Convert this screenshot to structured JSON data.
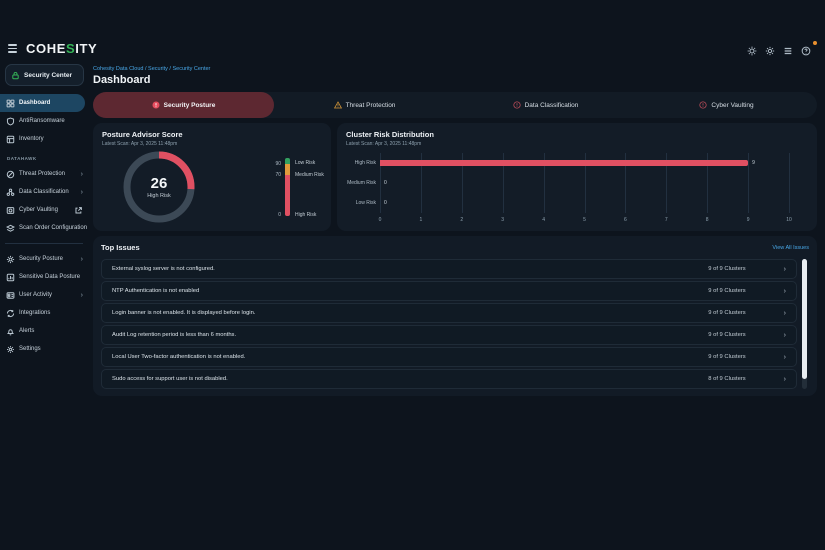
{
  "topbar": {
    "logo": {
      "pre": "COHE",
      "mid": "S",
      "post": "ITY"
    },
    "icons": [
      "brightness-icon",
      "gear-icon",
      "apps-grid-icon",
      "help-circle-icon"
    ],
    "notification_color": "#e8902f"
  },
  "sidebar": {
    "app_label": "Security Center",
    "main_items": [
      {
        "label": "Dashboard",
        "selected": true
      },
      {
        "label": "AntiRansomware",
        "selected": false
      },
      {
        "label": "Inventory",
        "selected": false
      }
    ],
    "section_label": "DATAHAWK",
    "datahawk_items": [
      {
        "label": "Threat Protection",
        "chevron": "›"
      },
      {
        "label": "Data Classification",
        "chevron": "›"
      },
      {
        "label": "Cyber Vaulting",
        "chevron": ""
      },
      {
        "label": "Scan Order Configuration",
        "chevron": ""
      }
    ],
    "bottom_items": [
      {
        "label": "Security Posture",
        "chevron": "›"
      },
      {
        "label": "Sensitive Data Posture",
        "chevron": ""
      },
      {
        "label": "User Activity",
        "chevron": "›"
      },
      {
        "label": "Integrations",
        "chevron": ""
      },
      {
        "label": "Alerts",
        "chevron": ""
      },
      {
        "label": "Settings",
        "chevron": ""
      }
    ]
  },
  "header": {
    "breadcrumb": "Cohesity Data Cloud / Security / Security Center",
    "title": "Dashboard"
  },
  "tabs": [
    {
      "label": "Security Posture",
      "selected": true,
      "icon": "error-circle-solid",
      "icon_color": "#e64c5e"
    },
    {
      "label": "Threat Protection",
      "selected": false,
      "icon": "warning-triangle",
      "icon_color": "#d99a3a"
    },
    {
      "label": "Data Classification",
      "selected": false,
      "icon": "error-circle-outline",
      "icon_color": "#c9515e"
    },
    {
      "label": "Cyber Vaulting",
      "selected": false,
      "icon": "error-circle-outline",
      "icon_color": "#c9515e"
    }
  ],
  "posture_card": {
    "title": "Posture Advisor Score",
    "subtitle": "Latest Scan: Apr 3, 2025 11:48pm",
    "legend": [
      {
        "value": "90",
        "label": "Low Risk",
        "color": "#33a05f",
        "pct": 10
      },
      {
        "value": "70",
        "label": "Medium Risk",
        "color": "#e09a3c",
        "pct": 20
      },
      {
        "value": "0",
        "label": "High Risk",
        "color": "#e05062",
        "pct": 70
      }
    ]
  },
  "cluster_card": {
    "title": "Cluster Risk Distribution",
    "subtitle": "Latest Scan: Apr 3, 2025 11:48pm"
  },
  "chart_data": [
    {
      "type": "bar",
      "orientation": "horizontal",
      "title": "Cluster Risk Distribution",
      "categories": [
        "High Risk",
        "Medium Risk",
        "Low Risk"
      ],
      "values": [
        9,
        0,
        0
      ],
      "xlim": [
        0,
        10
      ],
      "xticks": [
        0,
        1,
        2,
        3,
        4,
        5,
        6,
        7,
        8,
        9,
        10
      ],
      "bar_color": "#e05062",
      "grid": true,
      "legend_position": "none"
    },
    {
      "type": "donut-gauge",
      "title": "Posture Advisor Score",
      "value": 26,
      "max": 100,
      "label": "High Risk",
      "arc_color": "#e05062",
      "track_color": "#3c4956"
    }
  ],
  "top_issues": {
    "title": "Top Issues",
    "view_all": "View All Issues",
    "rows": [
      {
        "text": "External syslog server is not configured.",
        "clusters": "9 of 9 Clusters"
      },
      {
        "text": "NTP Authentication is not enabled",
        "clusters": "9 of 9 Clusters"
      },
      {
        "text": "Login banner is not enabled. It is displayed before login.",
        "clusters": "9 of 9 Clusters"
      },
      {
        "text": "Audit Log retention period is less than 6 months.",
        "clusters": "9 of 9 Clusters"
      },
      {
        "text": "Local User Two-factor authentication is not enabled.",
        "clusters": "9 of 9 Clusters"
      },
      {
        "text": "Sudo access for support user is not disabled.",
        "clusters": "8 of 9 Clusters"
      }
    ]
  },
  "colors": {
    "background": "#0d141d",
    "card": "#131c27",
    "selected_nav": "#1d4662",
    "selected_tab": "#5d2831",
    "accent_red": "#e05062",
    "accent_green": "#33a05f",
    "accent_orange": "#e09a3c",
    "link_blue": "#49a8e8"
  }
}
